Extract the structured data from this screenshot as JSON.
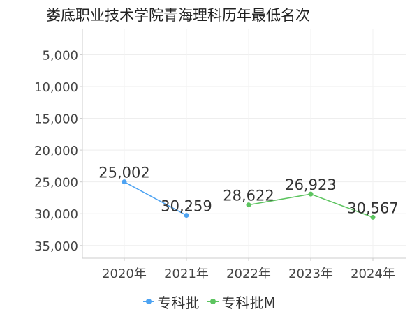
{
  "title": "娄底职业技术学院青海理科历年最低名次",
  "legend": [
    {
      "label": "专科批",
      "color": "#4da3f2"
    },
    {
      "label": "专科批M",
      "color": "#5cc45f"
    }
  ],
  "chart_data": {
    "type": "line",
    "title": "娄底职业技术学院青海理科历年最低名次",
    "categories": [
      "2020年",
      "2021年",
      "2022年",
      "2023年",
      "2024年"
    ],
    "y_ticks": [
      "5,000",
      "10,000",
      "15,000",
      "20,000",
      "25,000",
      "30,000",
      "35,000"
    ],
    "y_tick_values": [
      5000,
      10000,
      15000,
      20000,
      25000,
      30000,
      35000
    ],
    "ylim": [
      1000,
      37000
    ],
    "y_inverted": true,
    "grid": true,
    "legend_position": "bottom",
    "series": [
      {
        "name": "专科批",
        "color": "#4da3f2",
        "points": [
          {
            "x": "2020年",
            "y": 25002,
            "label": "25,002"
          },
          {
            "x": "2021年",
            "y": 30259,
            "label": "30,259"
          }
        ]
      },
      {
        "name": "专科批M",
        "color": "#5cc45f",
        "points": [
          {
            "x": "2022年",
            "y": 28622,
            "label": "28,622"
          },
          {
            "x": "2023年",
            "y": 26923,
            "label": "26,923"
          },
          {
            "x": "2024年",
            "y": 30567,
            "label": "30,567"
          }
        ]
      }
    ]
  }
}
